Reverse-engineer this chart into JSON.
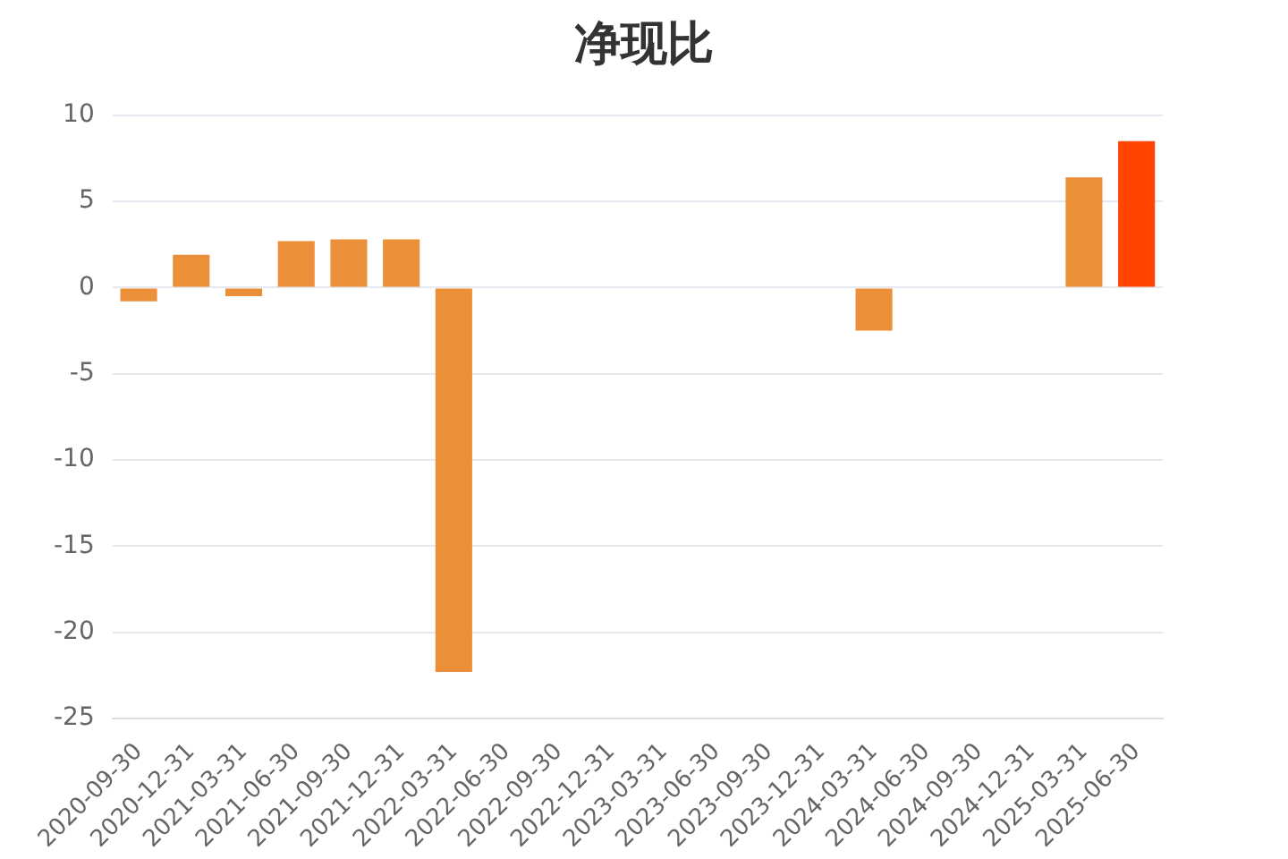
{
  "chart_data": {
    "type": "bar",
    "title": "净现比",
    "categories": [
      "2020-09-30",
      "2020-12-31",
      "2021-03-31",
      "2021-06-30",
      "2021-09-30",
      "2021-12-31",
      "2022-03-31",
      "2022-06-30",
      "2022-09-30",
      "2022-12-31",
      "2023-03-31",
      "2023-06-30",
      "2023-09-30",
      "2023-12-31",
      "2024-03-31",
      "2024-06-30",
      "2024-09-30",
      "2024-12-31",
      "2025-03-31",
      "2025-06-30"
    ],
    "values": [
      -0.8,
      1.9,
      -0.5,
      2.7,
      2.8,
      2.8,
      -22.3,
      null,
      null,
      null,
      null,
      null,
      null,
      null,
      -2.5,
      null,
      null,
      null,
      6.4,
      8.5
    ],
    "colors": [
      "#eb8f38",
      "#eb8f38",
      "#eb8f38",
      "#eb8f38",
      "#eb8f38",
      "#eb8f38",
      "#eb8f38",
      "#eb8f38",
      "#eb8f38",
      "#eb8f38",
      "#eb8f38",
      "#eb8f38",
      "#eb8f38",
      "#eb8f38",
      "#eb8f38",
      "#eb8f38",
      "#eb8f38",
      "#eb8f38",
      "#eb8f38",
      "#ff4500"
    ],
    "ylim": [
      -25,
      10
    ],
    "yticks": [
      -25,
      -20,
      -15,
      -10,
      -5,
      0,
      5,
      10
    ],
    "grid": "y",
    "legend": false
  }
}
